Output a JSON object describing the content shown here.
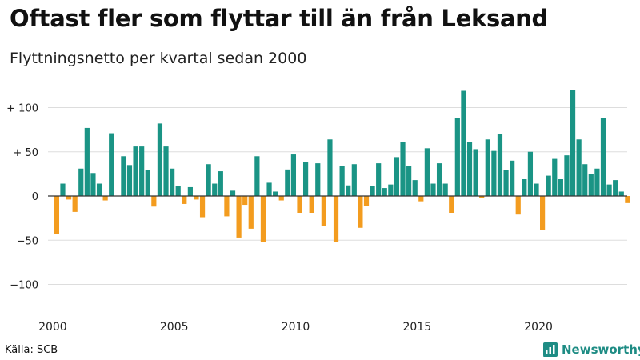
{
  "title": "Oftast fler som flyttar till än från Leksand",
  "subtitle": "Flyttningsnetto per kvartal sedan 2000",
  "source": "Källa: SCB",
  "brand": {
    "name": "Newsworthy",
    "icon": "bar-chart-logo-icon",
    "color": "#1e8c84"
  },
  "chart_data": {
    "type": "bar",
    "x_unit": "quarter",
    "x_start": "2000 Q1",
    "y_tick_labels": [
      "+ 100",
      "+  50",
      "0",
      "−50",
      "−100"
    ],
    "y_ticks": [
      100,
      50,
      0,
      -50,
      -100
    ],
    "x_tick_labels": [
      "2000",
      "2005",
      "2010",
      "2015",
      "2020"
    ],
    "ylim": [
      -100,
      100
    ],
    "grid": true,
    "positive_color": "#1a9485",
    "negative_color": "#f39c1f",
    "zero_line_color": "#333333",
    "values": [
      -43,
      14,
      -4,
      -18,
      31,
      77,
      26,
      14,
      -5,
      71,
      0,
      45,
      35,
      56,
      56,
      29,
      -12,
      82,
      56,
      31,
      11,
      -9,
      10,
      -4,
      -24,
      36,
      14,
      28,
      -23,
      6,
      -47,
      -10,
      -37,
      45,
      -52,
      15,
      5,
      -5,
      30,
      47,
      -19,
      38,
      -19,
      37,
      -34,
      64,
      -52,
      34,
      12,
      36,
      -36,
      -11,
      11,
      37,
      9,
      13,
      44,
      61,
      34,
      18,
      -6,
      54,
      14,
      37,
      14,
      -19,
      88,
      119,
      61,
      53,
      -2,
      64,
      51,
      70,
      29,
      40,
      -21,
      19,
      50,
      14,
      -38,
      23,
      42,
      19,
      46,
      120,
      64,
      36,
      25,
      31,
      88,
      13,
      18,
      5,
      -8
    ]
  }
}
